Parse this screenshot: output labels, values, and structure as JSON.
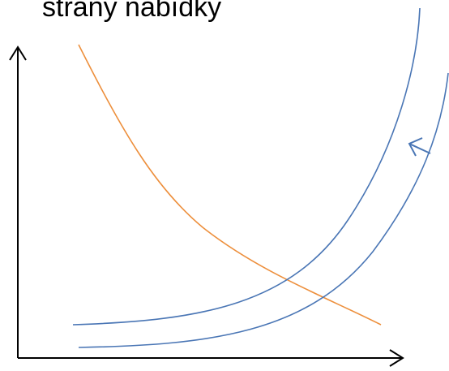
{
  "heading": "strany nabídky"
}
